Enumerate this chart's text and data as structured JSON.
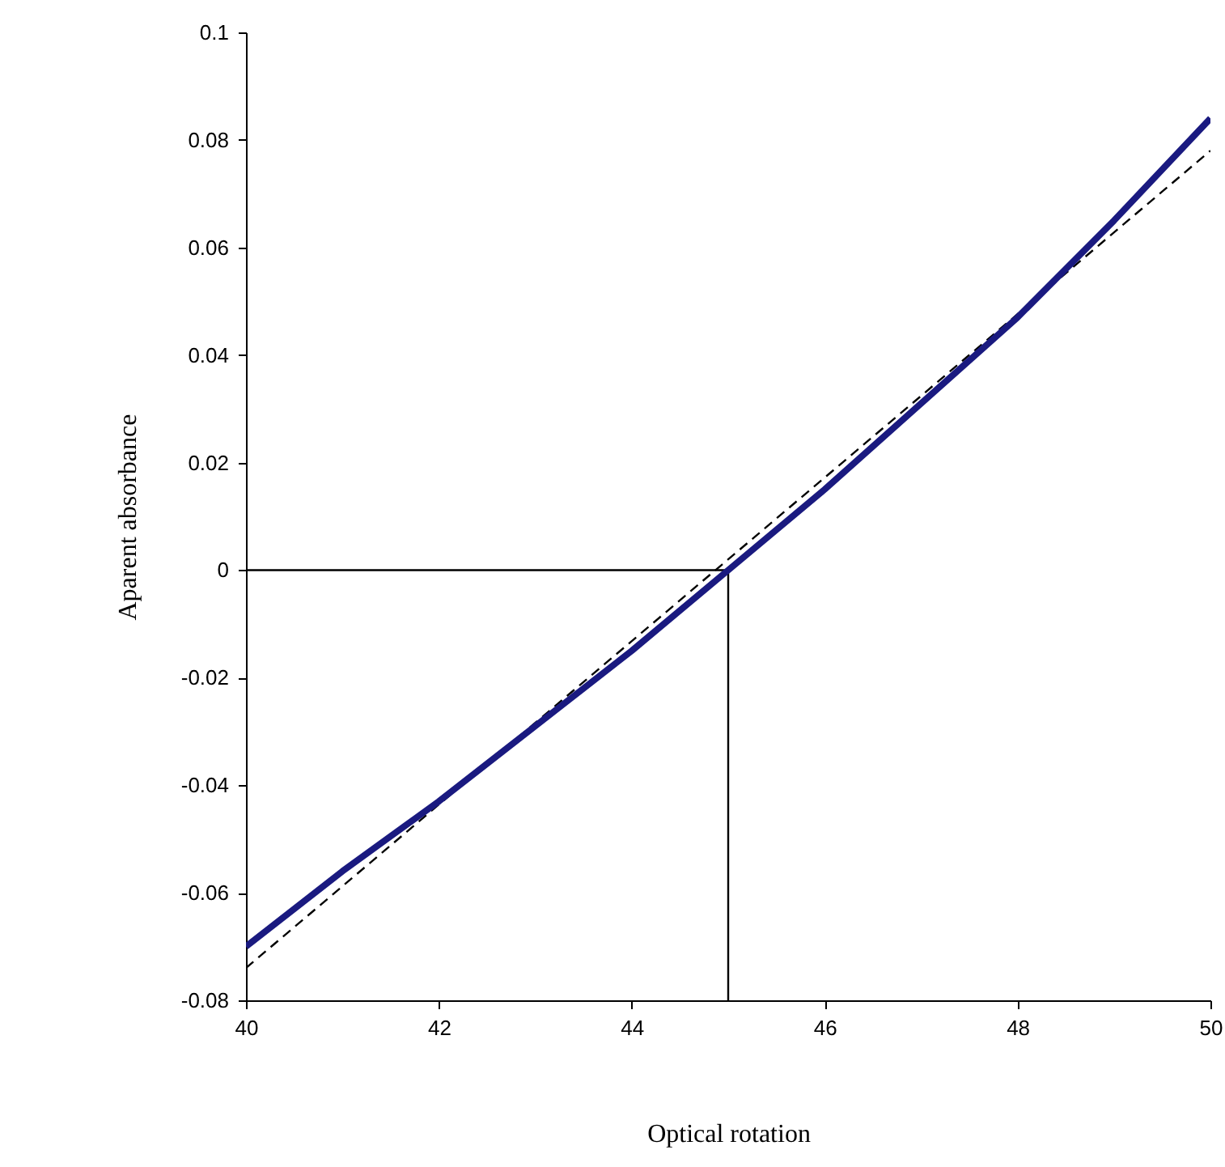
{
  "chart_data": {
    "type": "line",
    "xlabel": "Optical rotation",
    "ylabel": "Aparent absorbance",
    "xlim": [
      40,
      50
    ],
    "xticks": [
      40,
      42,
      44,
      46,
      48,
      50
    ],
    "ylim": [
      -0.08,
      0.1
    ],
    "yticks": [
      -0.08,
      -0.06,
      -0.04,
      -0.02,
      0,
      0.02,
      0.04,
      0.06,
      0.08,
      0.1
    ],
    "grid": false,
    "marker": "none",
    "series": [
      {
        "color": "#000000",
        "line_style": "solid",
        "x": [
          40,
          45,
          45
        ],
        "values": [
          0,
          0,
          -0.08
        ]
      },
      {
        "color": "#000000",
        "line_style": "dashed",
        "x": [
          40,
          45,
          50
        ],
        "values": [
          -0.074,
          0.002,
          0.078
        ]
      },
      {
        "color": "#1a1a80",
        "line_style": "solid",
        "x": [
          40,
          41,
          42,
          43,
          44,
          45,
          46,
          47,
          48,
          49,
          50
        ],
        "values": [
          -0.07,
          -0.056,
          -0.043,
          -0.029,
          -0.015,
          0.0,
          0.015,
          0.031,
          0.047,
          0.065,
          0.084
        ]
      }
    ]
  }
}
